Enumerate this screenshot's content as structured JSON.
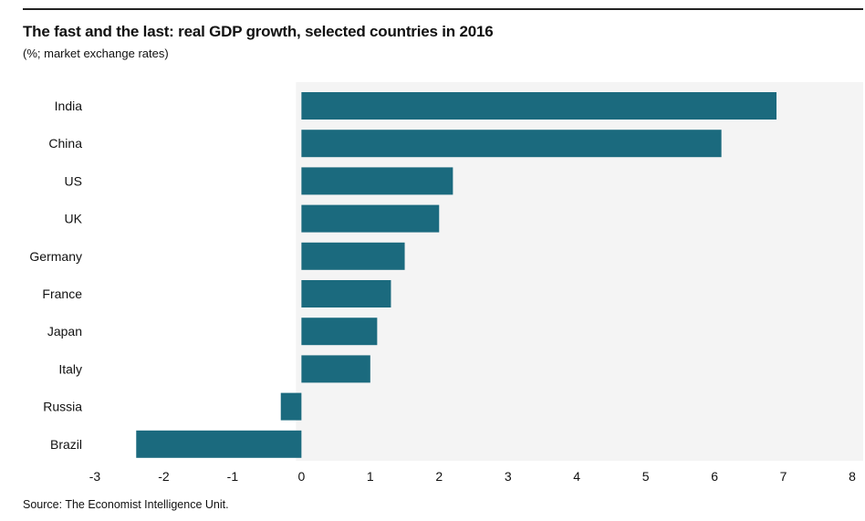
{
  "chart_data": {
    "type": "bar",
    "orientation": "horizontal",
    "title": "The fast and the last: real GDP growth, selected countries in 2016",
    "subtitle": "(%; market exchange rates)",
    "source": "Source: The Economist Intelligence Unit.",
    "categories": [
      "India",
      "China",
      "US",
      "UK",
      "Germany",
      "France",
      "Japan",
      "Italy",
      "Russia",
      "Brazil"
    ],
    "values": [
      6.9,
      6.1,
      2.2,
      2.0,
      1.5,
      1.3,
      1.1,
      1.0,
      -0.3,
      -2.4
    ],
    "xlim": [
      -3,
      8
    ],
    "xticks": [
      -3,
      -2,
      -1,
      0,
      1,
      2,
      3,
      4,
      5,
      6,
      7,
      8
    ],
    "grid": false,
    "bar_color": "#1b6a7e",
    "plot_background": "#f4f4f4"
  }
}
